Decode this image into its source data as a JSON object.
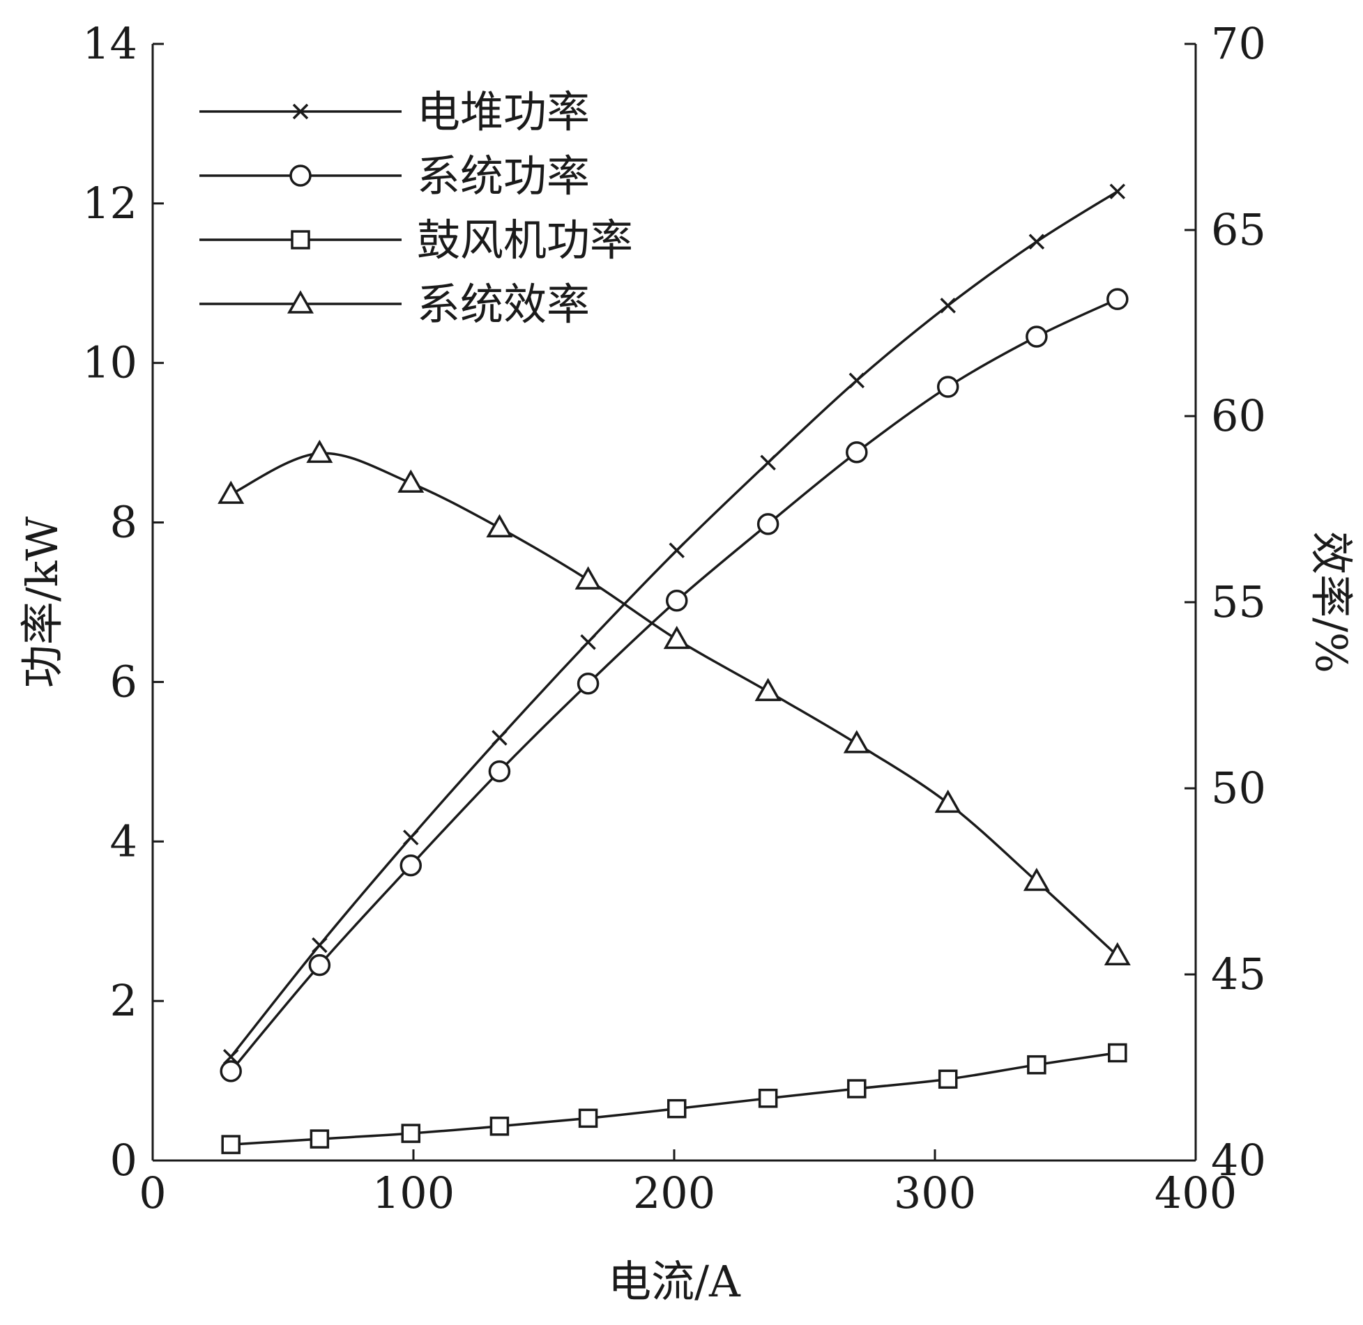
{
  "chart_data": {
    "type": "line",
    "xlabel": "电流/A",
    "ylabel_left": "功率/kW",
    "ylabel_right": "效率/%",
    "xlim": [
      0,
      400
    ],
    "ylim_left": [
      0,
      14
    ],
    "ylim_right": [
      40,
      70
    ],
    "xticks": [
      0,
      100,
      200,
      300,
      400
    ],
    "yticks_left": [
      0,
      2,
      4,
      6,
      8,
      10,
      12,
      14
    ],
    "yticks_right": [
      40,
      45,
      50,
      55,
      60,
      65,
      70
    ],
    "grid": false,
    "legend_position": "top-left",
    "x": [
      30,
      64,
      99,
      133,
      167,
      201,
      236,
      270,
      305,
      339,
      370
    ],
    "series": [
      {
        "name": "电堆功率",
        "marker": "x",
        "axis": "left",
        "values": [
          1.3,
          2.7,
          4.05,
          5.3,
          6.5,
          7.65,
          8.75,
          9.78,
          10.72,
          11.52,
          12.15
        ]
      },
      {
        "name": "系统功率",
        "marker": "circle",
        "axis": "left",
        "values": [
          1.12,
          2.45,
          3.7,
          4.88,
          5.98,
          7.02,
          7.98,
          8.88,
          9.7,
          10.33,
          10.8
        ]
      },
      {
        "name": "鼓风机功率",
        "marker": "square",
        "axis": "left",
        "values": [
          0.2,
          0.27,
          0.34,
          0.43,
          0.53,
          0.65,
          0.78,
          0.9,
          1.02,
          1.2,
          1.35
        ]
      },
      {
        "name": "系统效率",
        "marker": "triangle",
        "axis": "right",
        "values": [
          57.9,
          59.0,
          58.2,
          57.0,
          55.6,
          54.0,
          52.6,
          51.2,
          49.6,
          47.5,
          45.5
        ]
      }
    ]
  }
}
